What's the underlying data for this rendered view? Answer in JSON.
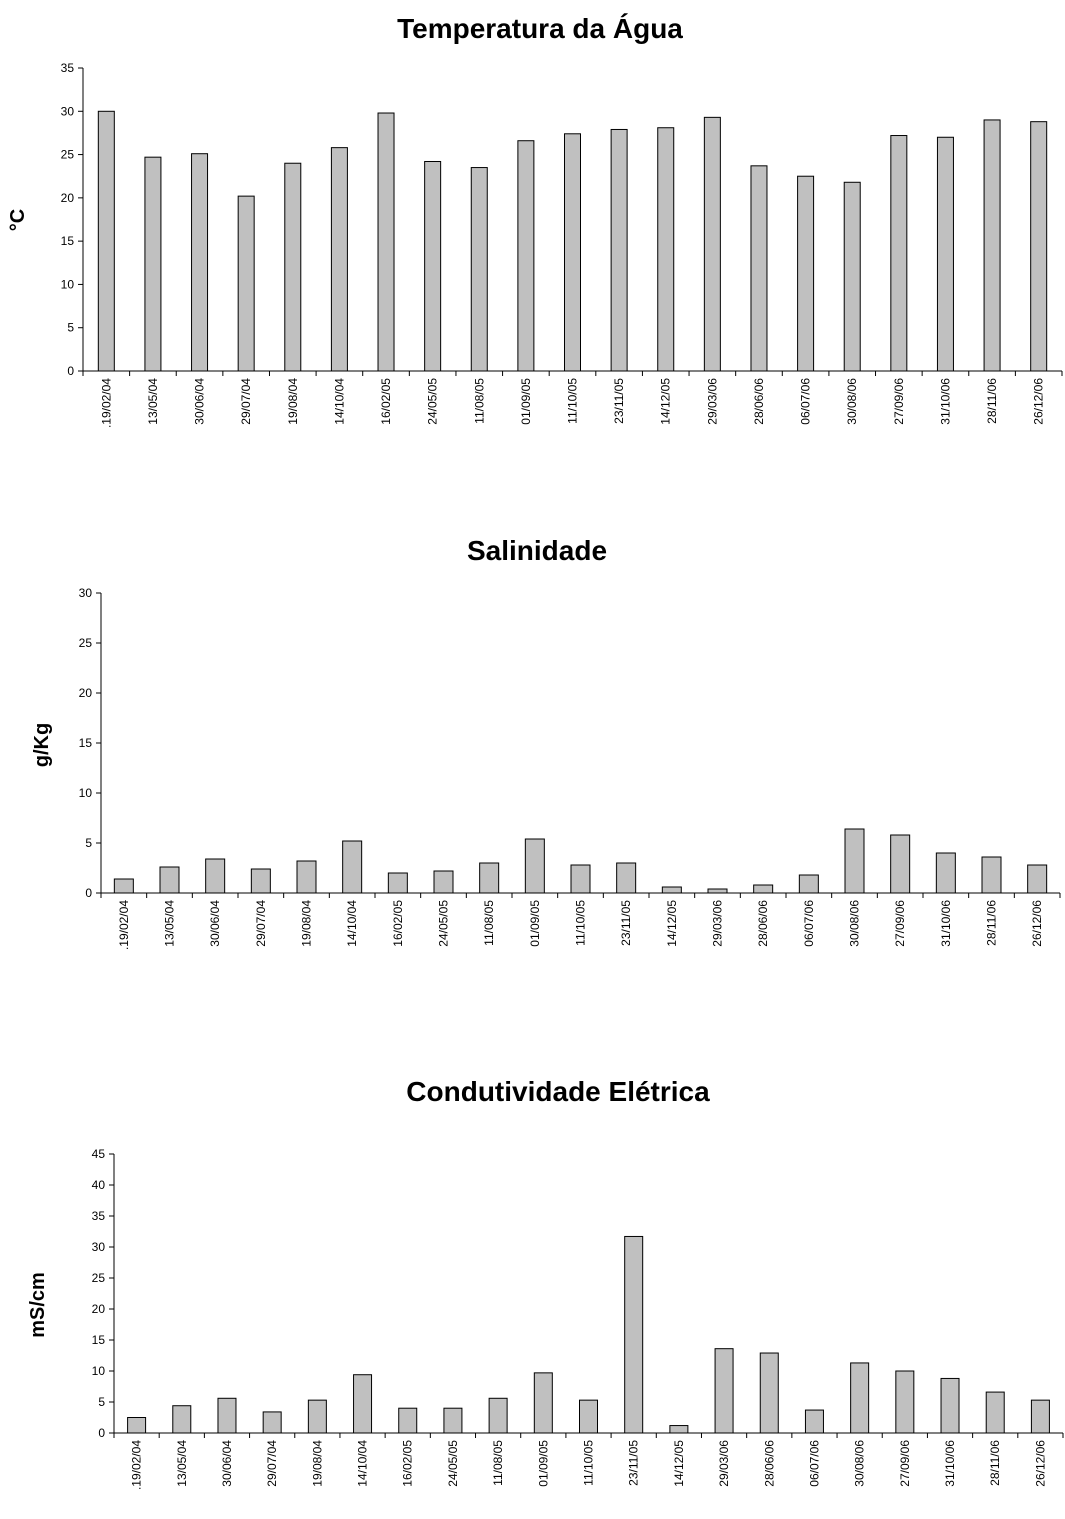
{
  "colors": {
    "bar_fill": "#c0c0c0",
    "bar_stroke": "#000000",
    "axis": "#000000"
  },
  "chart_data": [
    {
      "type": "bar",
      "title": "Temperatura da Água",
      "xlabel": "",
      "ylabel": "°C",
      "ylim": [
        0,
        35
      ],
      "ytick_step": 5,
      "yticks": [
        "0",
        "5",
        "10",
        "15",
        "20",
        "25",
        "30",
        "35"
      ],
      "grid": false,
      "categories": [
        ".19/02/04",
        "13/05/04",
        "30/06/04",
        "29/07/04",
        "19/08/04",
        "14/10/04",
        "16/02/05",
        "24/05/05",
        "11/08/05",
        "01/09/05",
        "11/10/05",
        "23/11/05",
        "14/12/05",
        "29/03/06",
        "28/06/06",
        "06/07/06",
        "30/08/06",
        "27/09/06",
        "31/10/06",
        "28/11/06",
        "26/12/06"
      ],
      "values": [
        30.0,
        24.7,
        25.1,
        20.2,
        24.0,
        25.8,
        29.8,
        24.2,
        23.5,
        26.6,
        27.4,
        27.9,
        28.1,
        29.3,
        23.7,
        22.5,
        21.8,
        27.2,
        27.0,
        29.0,
        28.8
      ]
    },
    {
      "type": "bar",
      "title": "Salinidade",
      "xlabel": "",
      "ylabel": "g/Kg",
      "ylim": [
        0,
        30
      ],
      "ytick_step": 5,
      "yticks": [
        "0",
        "5",
        "10",
        "15",
        "20",
        "25",
        "30"
      ],
      "grid": false,
      "categories": [
        ".19/02/04",
        "13/05/04",
        "30/06/04",
        "29/07/04",
        "19/08/04",
        "14/10/04",
        "16/02/05",
        "24/05/05",
        "11/08/05",
        "01/09/05",
        "11/10/05",
        "23/11/05",
        "14/12/05",
        "29/03/06",
        "28/06/06",
        "06/07/06",
        "30/08/06",
        "27/09/06",
        "31/10/06",
        "28/11/06",
        "26/12/06"
      ],
      "values": [
        1.4,
        2.6,
        3.4,
        2.4,
        3.2,
        5.2,
        2.0,
        2.2,
        3.0,
        5.4,
        2.8,
        3.0,
        0.6,
        0.4,
        0.8,
        1.8,
        6.4,
        5.8,
        4.0,
        3.6,
        2.8
      ]
    },
    {
      "type": "bar",
      "title": "Condutividade Elétrica",
      "xlabel": "",
      "ylabel": "mS/cm",
      "ylim": [
        0,
        45
      ],
      "ytick_step": 5,
      "yticks": [
        "0",
        "5",
        "10",
        "15",
        "20",
        "25",
        "30",
        "35",
        "40",
        "45"
      ],
      "grid": false,
      "categories": [
        ".19/02/04",
        "13/05/04",
        "30/06/04",
        "29/07/04",
        "19/08/04",
        "14/10/04",
        "16/02/05",
        "24/05/05",
        "11/08/05",
        "01/09/05",
        "11/10/05",
        "23/11/05",
        "14/12/05",
        "29/03/06",
        "28/06/06",
        "06/07/06",
        "30/08/06",
        "27/09/06",
        "31/10/06",
        "28/11/06",
        "26/12/06"
      ],
      "values": [
        2.5,
        4.4,
        5.6,
        3.4,
        5.3,
        9.4,
        4.0,
        4.0,
        5.6,
        9.7,
        5.3,
        31.7,
        1.2,
        13.6,
        12.9,
        3.7,
        11.3,
        10.0,
        8.8,
        6.6,
        5.3
      ]
    }
  ]
}
